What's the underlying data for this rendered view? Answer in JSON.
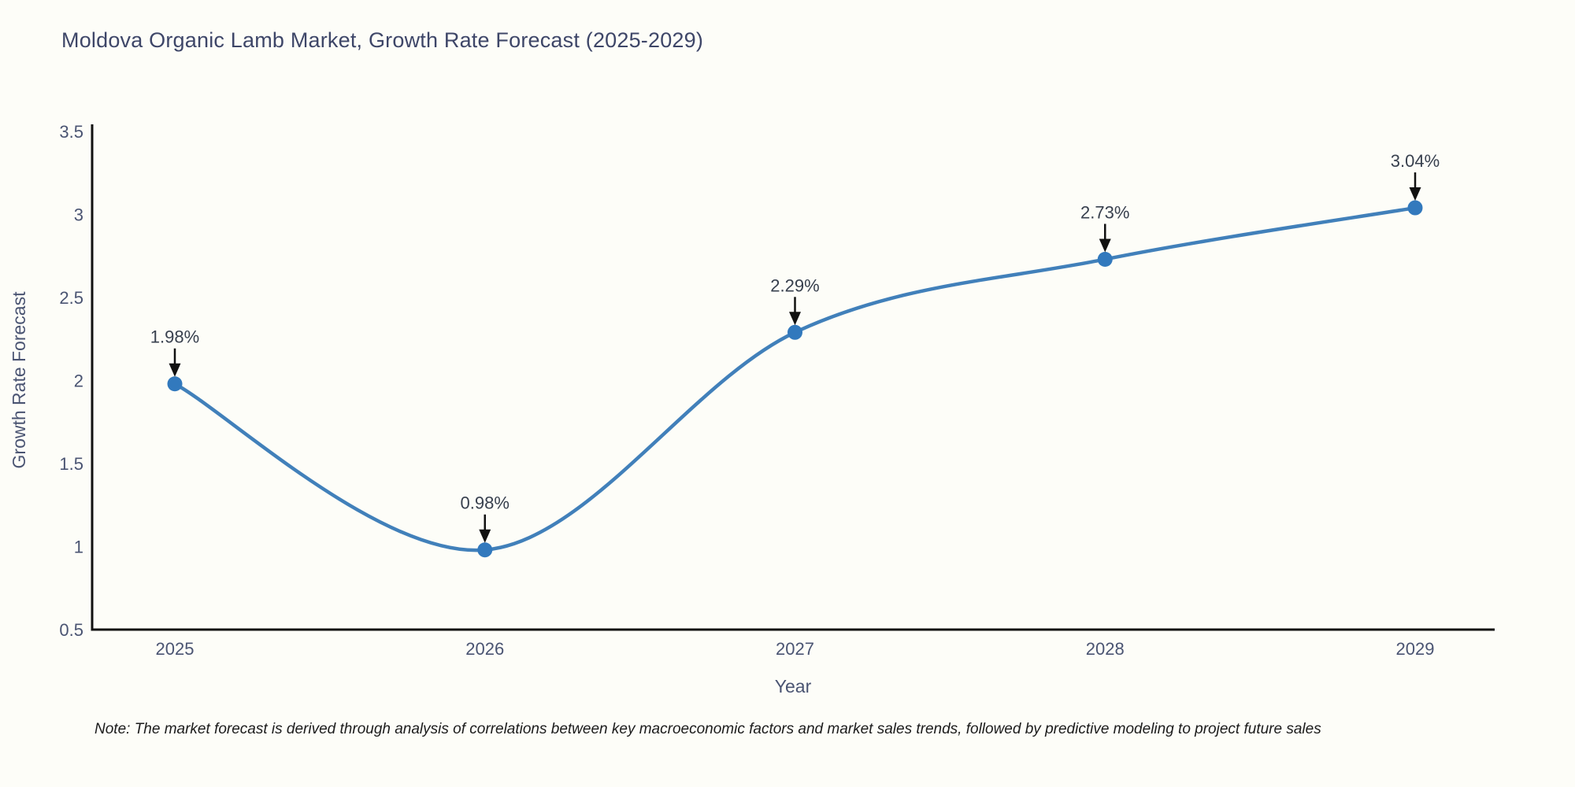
{
  "page": {
    "background_color": "#fdfdf8"
  },
  "chart_data": {
    "type": "line",
    "line_shape": "spline",
    "title": "Moldova Organic Lamb Market, Growth Rate Forecast (2025-2029)",
    "xlabel": "Year",
    "ylabel": "Growth Rate Forecast",
    "categories": [
      "2025",
      "2026",
      "2027",
      "2028",
      "2029"
    ],
    "values": [
      1.98,
      0.98,
      2.29,
      2.73,
      3.04
    ],
    "point_labels": [
      "1.98%",
      "0.98%",
      "2.29%",
      "2.73%",
      "3.04%"
    ],
    "ylim": [
      0.5,
      3.5
    ],
    "yticks": [
      0.5,
      1,
      1.5,
      2,
      2.5,
      3,
      3.5
    ],
    "ytick_labels": [
      "0.5",
      "1",
      "1.5",
      "2",
      "2.5",
      "3",
      "3.5"
    ],
    "grid": false,
    "legend_position": "none",
    "annotations_have_arrows": true,
    "colors": {
      "line": "#4180ba",
      "marker": "#3279bd",
      "axis_line": "#111111",
      "axis_text": "#4a5472",
      "title_text": "#3e4668",
      "annotation_text": "#38404e",
      "arrow": "#111111"
    }
  },
  "note": "Note: The market forecast is derived through analysis of correlations between key macroeconomic factors and market sales trends, followed by predictive modeling to project future sales"
}
